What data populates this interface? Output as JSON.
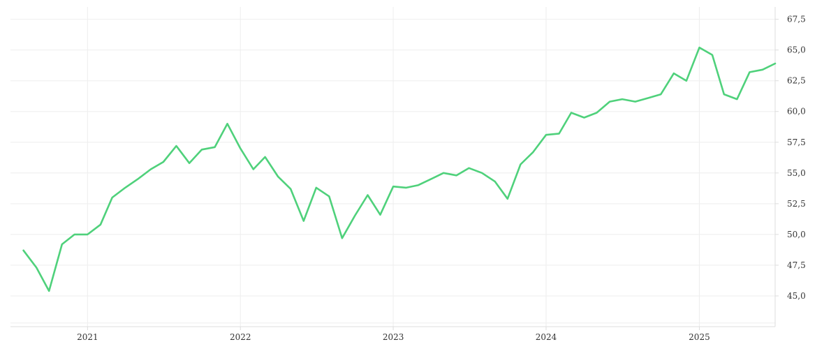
{
  "chart_data": {
    "type": "line",
    "title": "",
    "xlabel": "",
    "ylabel": "",
    "grid": true,
    "legend": "none",
    "y_axis_side": "right",
    "xlim": [
      "2020-07-01",
      "2025-07-01"
    ],
    "ylim": [
      42.5,
      68.5
    ],
    "x_ticks": [
      "2021",
      "2022",
      "2023",
      "2024",
      "2025"
    ],
    "x_tick_dates": [
      "2021-01-01",
      "2022-01-01",
      "2023-01-01",
      "2024-01-01",
      "2025-01-01"
    ],
    "y_ticks": [
      45.0,
      47.5,
      50.0,
      52.5,
      55.0,
      57.5,
      60.0,
      62.5,
      65.0,
      67.5
    ],
    "y_tick_labels": [
      "45,0",
      "47,5",
      "50,0",
      "52,5",
      "55,0",
      "57,5",
      "60,0",
      "62,5",
      "65,0",
      "67,5"
    ],
    "colors": {
      "line": "#4fd17b",
      "grid": "#eeeeee",
      "axis": "#dddddd",
      "text": "#333333"
    },
    "series": [
      {
        "x": [
          "2020-08-01",
          "2020-09-01",
          "2020-10-01",
          "2020-11-01",
          "2020-12-01",
          "2021-01-01",
          "2021-02-01",
          "2021-03-01",
          "2021-04-01",
          "2021-05-01",
          "2021-06-01",
          "2021-07-01",
          "2021-08-01",
          "2021-09-01",
          "2021-10-01",
          "2021-11-01",
          "2021-12-01",
          "2022-01-01",
          "2022-02-01",
          "2022-03-01",
          "2022-04-01",
          "2022-05-01",
          "2022-06-01",
          "2022-07-01",
          "2022-08-01",
          "2022-09-01",
          "2022-10-01",
          "2022-11-01",
          "2022-12-01",
          "2023-01-01",
          "2023-02-01",
          "2023-03-01",
          "2023-04-01",
          "2023-05-01",
          "2023-06-01",
          "2023-07-01",
          "2023-08-01",
          "2023-09-01",
          "2023-10-01",
          "2023-11-01",
          "2023-12-01",
          "2024-01-01",
          "2024-02-01",
          "2024-03-01",
          "2024-04-01",
          "2024-05-01",
          "2024-06-01",
          "2024-07-01",
          "2024-08-01",
          "2024-09-01",
          "2024-10-01",
          "2024-11-01",
          "2024-12-01",
          "2025-01-01",
          "2025-02-01",
          "2025-03-01",
          "2025-04-01",
          "2025-05-01",
          "2025-06-01",
          "2025-07-01"
        ],
        "values": [
          48.7,
          47.3,
          45.4,
          49.2,
          50.0,
          50.0,
          50.8,
          53.0,
          53.8,
          54.5,
          55.3,
          55.9,
          57.2,
          55.8,
          56.9,
          57.1,
          59.0,
          57.0,
          55.3,
          56.3,
          54.7,
          53.7,
          51.1,
          53.8,
          53.1,
          49.7,
          51.5,
          53.2,
          51.6,
          53.9,
          53.8,
          54.0,
          54.5,
          55.0,
          54.8,
          55.4,
          55.0,
          54.3,
          52.9,
          55.7,
          56.7,
          58.1,
          58.2,
          59.9,
          59.5,
          59.9,
          60.8,
          61.0,
          60.8,
          61.1,
          61.4,
          63.1,
          62.5,
          65.2,
          64.6,
          61.4,
          61.0,
          63.2,
          63.4,
          63.9
        ]
      }
    ]
  }
}
